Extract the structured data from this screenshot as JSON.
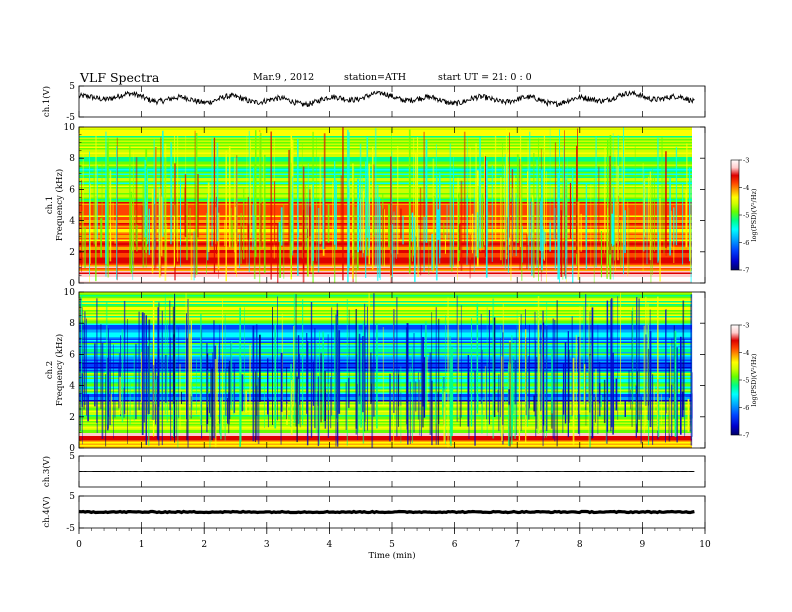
{
  "header": {
    "title": "VLF  Spectra",
    "date": "Mar.9  , 2012",
    "station": "station=ATH",
    "start_ut": "start  UT  =   21: 0  : 0"
  },
  "colors": {
    "colormap": [
      "#000066",
      "#0000cc",
      "#0044ff",
      "#00aaff",
      "#00ffff",
      "#00ff88",
      "#66ff00",
      "#ccff00",
      "#ffff00",
      "#ffaa00",
      "#ff4400",
      "#dd0000",
      "#ffcccc",
      "#ffffff"
    ],
    "trace": "#000000"
  },
  "chart_data": [
    {
      "type": "line",
      "panel": "ch1-waveform",
      "ylabel": "ch.1(V)",
      "yticks": [
        "5",
        "-5"
      ],
      "ylim": [
        -5,
        5
      ],
      "x_range": [
        0,
        9.83
      ],
      "description_value_range": [
        -1.5,
        3
      ]
    },
    {
      "type": "heatmap",
      "panel": "ch1-spectrogram",
      "ylabel": "ch.1\nFrequency  (kHz)",
      "ylabel_lines": [
        "ch.1",
        "Frequency  (kHz)"
      ],
      "yticks": [
        "0",
        "2",
        "4",
        "6",
        "8",
        "10"
      ],
      "ylim": [
        0,
        10
      ],
      "x_range": [
        0,
        9.83
      ],
      "colorbar": {
        "label": "log(PSD)(V²/Hz)",
        "ticks": [
          "-3",
          "-4",
          "-5",
          "-6",
          "-7"
        ],
        "range": [
          -7,
          -3
        ]
      },
      "bands_khz": [
        {
          "from": 0,
          "to": 0.6,
          "level": -3.2
        },
        {
          "from": 0.6,
          "to": 1.8,
          "level": -3.9
        },
        {
          "from": 1.8,
          "to": 3.0,
          "level": -4.0
        },
        {
          "from": 3.0,
          "to": 4.3,
          "level": -4.2
        },
        {
          "from": 4.3,
          "to": 5.2,
          "level": -4.1
        },
        {
          "from": 5.2,
          "to": 6.3,
          "level": -4.9
        },
        {
          "from": 6.3,
          "to": 8.3,
          "level": -5.3
        },
        {
          "from": 8.3,
          "to": 10,
          "level": -4.9
        }
      ]
    },
    {
      "type": "heatmap",
      "panel": "ch2-spectrogram",
      "ylabel": "ch.2\nFrequency  (kHz)",
      "ylabel_lines": [
        "ch.2",
        "Frequency  (kHz)"
      ],
      "yticks": [
        "0",
        "2",
        "4",
        "6",
        "8",
        "10"
      ],
      "ylim": [
        0,
        10
      ],
      "x_range": [
        0,
        9.83
      ],
      "colorbar": {
        "label": "log(PSD)(V²/Hz)",
        "ticks": [
          "-3",
          "-4",
          "-5",
          "-6",
          "-7"
        ],
        "range": [
          -7,
          -3
        ]
      },
      "bands_khz": [
        {
          "from": 0,
          "to": 0.5,
          "level": -4.6
        },
        {
          "from": 0.5,
          "to": 1.0,
          "level": -3.8
        },
        {
          "from": 1.0,
          "to": 3.0,
          "level": -5.0
        },
        {
          "from": 3.0,
          "to": 3.6,
          "level": -6.1
        },
        {
          "from": 3.6,
          "to": 5.0,
          "level": -5.3
        },
        {
          "from": 5.0,
          "to": 6.0,
          "level": -6.3
        },
        {
          "from": 6.0,
          "to": 6.8,
          "level": -5.6
        },
        {
          "from": 6.8,
          "to": 8.0,
          "level": -5.9
        },
        {
          "from": 8.0,
          "to": 10,
          "level": -5.0
        }
      ]
    },
    {
      "type": "line",
      "panel": "ch3-waveform",
      "ylabel": "ch.3(V)",
      "yticks": [
        "5"
      ],
      "ylim": [
        -5,
        5
      ],
      "x_range": [
        0,
        9.83
      ],
      "mean_value": 0
    },
    {
      "type": "line",
      "panel": "ch4-waveform",
      "ylabel": "ch.4(V)",
      "yticks": [
        "5",
        "-5"
      ],
      "ylim": [
        -5,
        5
      ],
      "x_range": [
        0,
        9.83
      ],
      "mean_value": 0
    }
  ],
  "x_axis": {
    "label": "Time  (min)",
    "ticks": [
      "0",
      "1",
      "2",
      "3",
      "4",
      "5",
      "6",
      "7",
      "8",
      "9",
      "10"
    ],
    "range": [
      0,
      10
    ]
  }
}
